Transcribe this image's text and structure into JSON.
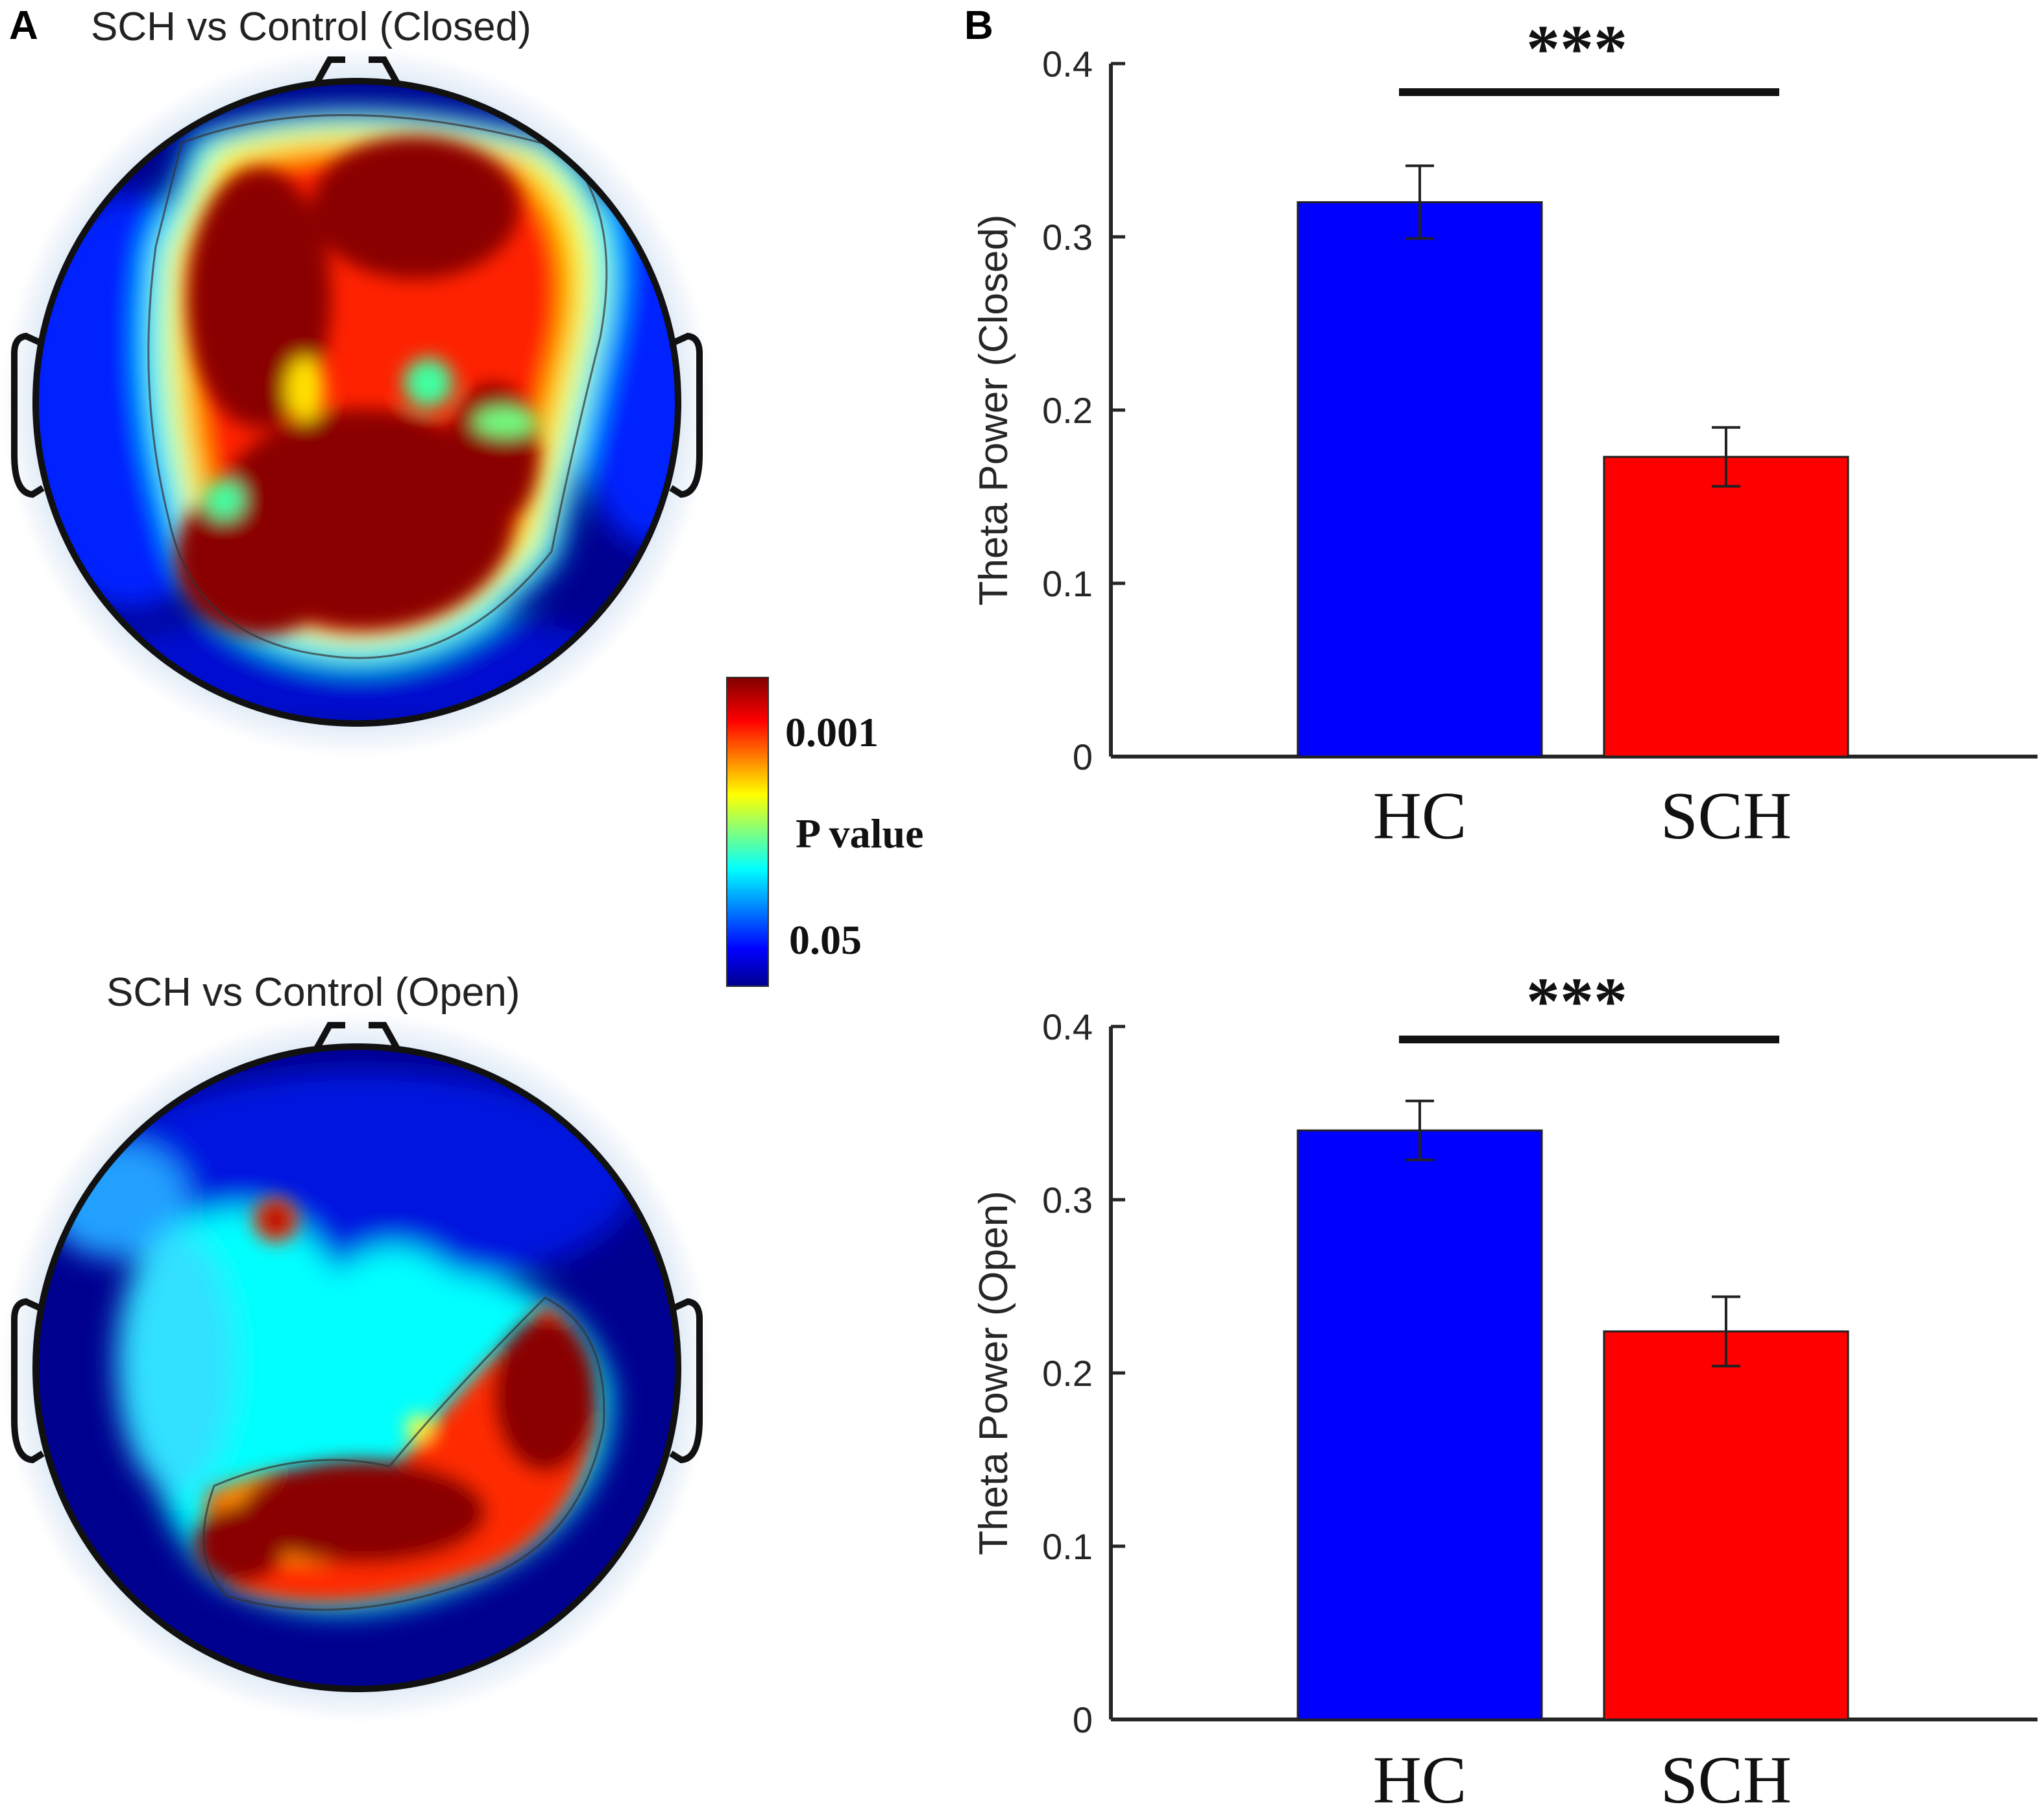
{
  "panel_a": {
    "letter": "A",
    "map_closed_title": "SCH vs Control (Closed)",
    "map_open_title": "SCH vs Control (Open)"
  },
  "colorbar": {
    "top_label": "0.001",
    "mid_label": "P value",
    "bottom_label": "0.05",
    "colors": [
      "#00008f",
      "#0000ff",
      "#00ffff",
      "#ffff00",
      "#ff0000",
      "#800000"
    ]
  },
  "panel_b": {
    "letter": "B"
  },
  "chart_data": [
    {
      "type": "bar",
      "title": "",
      "categories": [
        "HC",
        "SCH"
      ],
      "values": [
        0.32,
        0.173
      ],
      "errors": [
        0.021,
        0.017
      ],
      "colors": [
        "#0000ff",
        "#ff0000"
      ],
      "ylabel": "Theta Power (Closed)",
      "xlabel": "",
      "ylim": [
        0,
        0.4
      ],
      "yticks": [
        0,
        0.1,
        0.2,
        0.3,
        0.4
      ],
      "ytick_labels": [
        "0",
        "0.1",
        "0.2",
        "0.3",
        "0.4"
      ],
      "significance": "***"
    },
    {
      "type": "bar",
      "title": "",
      "categories": [
        "HC",
        "SCH"
      ],
      "values": [
        0.34,
        0.224
      ],
      "errors": [
        0.017,
        0.02
      ],
      "colors": [
        "#0000ff",
        "#ff0000"
      ],
      "ylabel": "Theta Power (Open)",
      "xlabel": "",
      "ylim": [
        0,
        0.4
      ],
      "yticks": [
        0,
        0.1,
        0.2,
        0.3,
        0.4
      ],
      "ytick_labels": [
        "0",
        "0.1",
        "0.2",
        "0.3",
        "0.4"
      ],
      "significance": "***"
    }
  ]
}
